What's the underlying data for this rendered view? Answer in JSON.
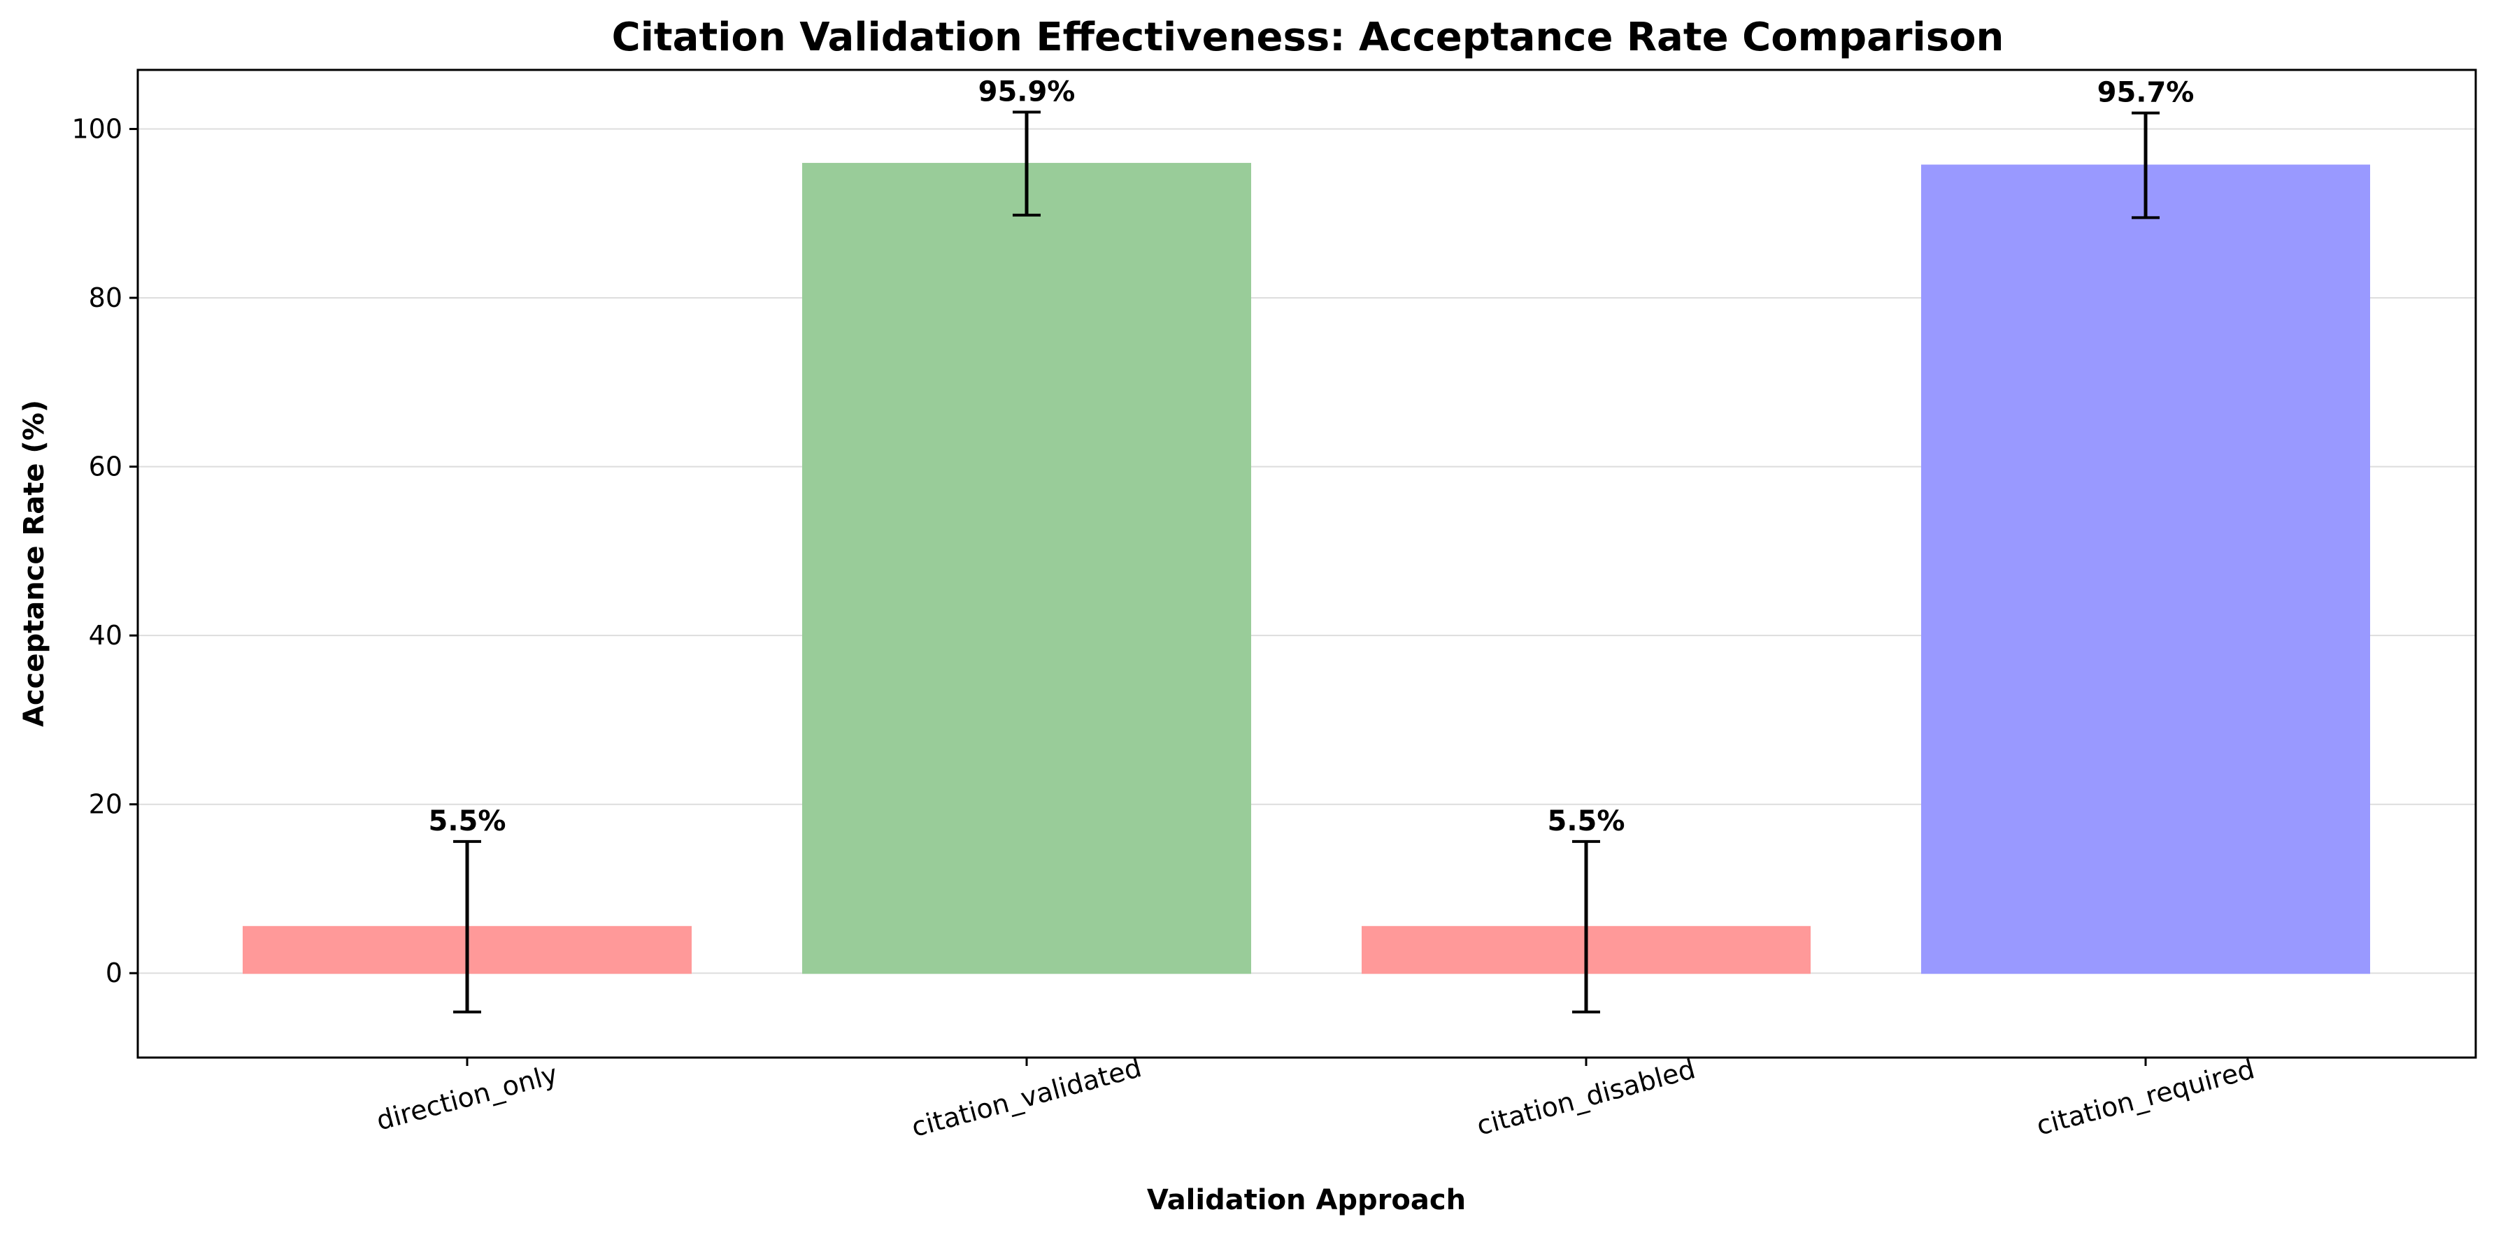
{
  "chart_data": {
    "type": "bar",
    "title": "Citation Validation Effectiveness: Acceptance Rate Comparison",
    "xlabel": "Validation Approach",
    "ylabel": "Acceptance Rate (%)",
    "categories": [
      "direction_only",
      "citation_validated",
      "citation_disabled",
      "citation_required"
    ],
    "values": [
      5.5,
      95.9,
      5.5,
      95.7
    ],
    "error_bars": [
      10.1,
      6.1,
      10.1,
      6.2
    ],
    "data_labels": [
      "5.5%",
      "95.9%",
      "5.5%",
      "95.7%"
    ],
    "bar_colors": [
      "#ff9999",
      "#99cc99",
      "#ff9999",
      "#9999ff"
    ],
    "ylim": [
      -10,
      107
    ],
    "yticks": [
      0,
      20,
      40,
      60,
      80,
      100
    ],
    "grid": "horizontal",
    "x_tick_rotation_deg": -15
  }
}
